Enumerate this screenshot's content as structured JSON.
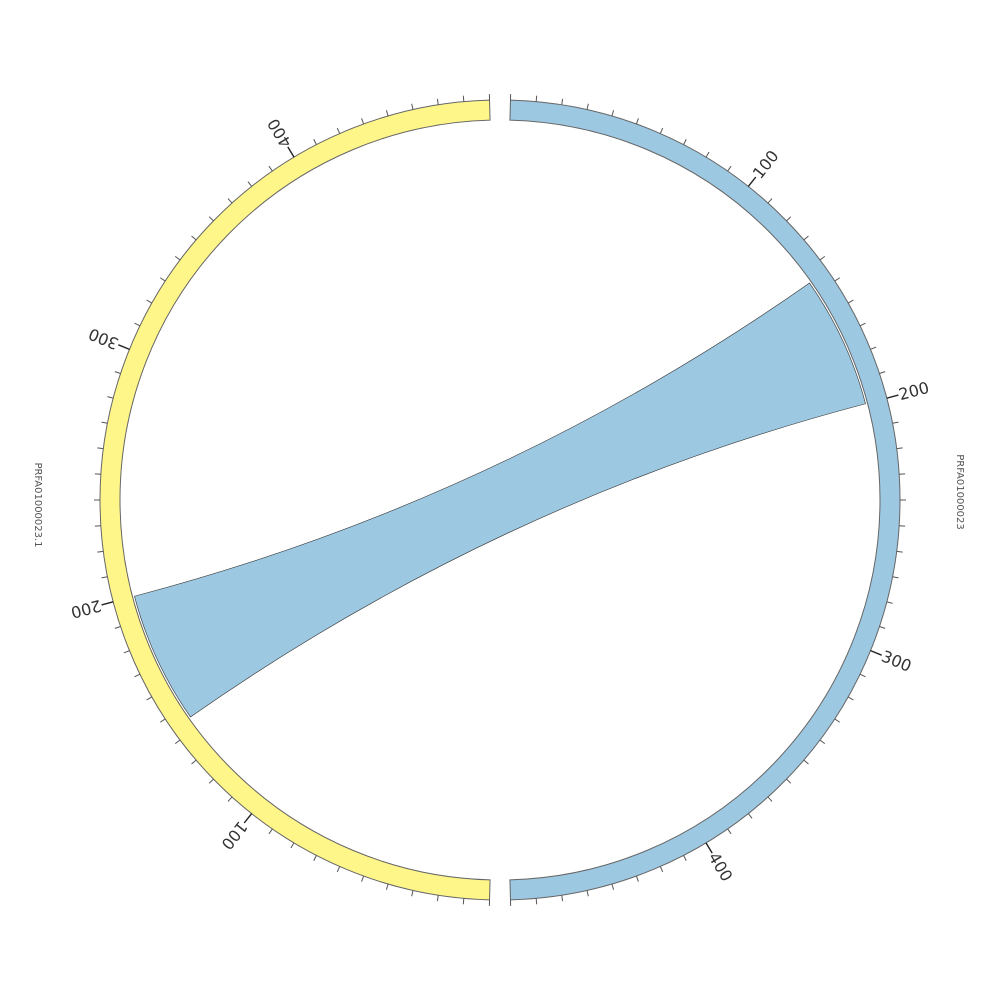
{
  "chart_data": {
    "type": "circos",
    "tick_major_step": 100,
    "tick_minor_step": 10,
    "sequences": [
      {
        "id": "seq-a",
        "label": "PRFA01000023",
        "length": 480,
        "color": "#9dc8e2",
        "major_tick_labels": [
          "100",
          "200",
          "300",
          "400"
        ]
      },
      {
        "id": "seq-b",
        "label": "PRFA01000023.1",
        "length": 480,
        "color": "#fff689",
        "major_tick_labels": [
          "100",
          "200",
          "300",
          "400"
        ]
      }
    ],
    "links": [
      {
        "source": {
          "sequence": "PRFA01000023",
          "start": 145,
          "end": 200
        },
        "target": {
          "sequence": "PRFA01000023.1",
          "start": 145,
          "end": 200
        },
        "color": "#9dc8e2"
      }
    ]
  }
}
